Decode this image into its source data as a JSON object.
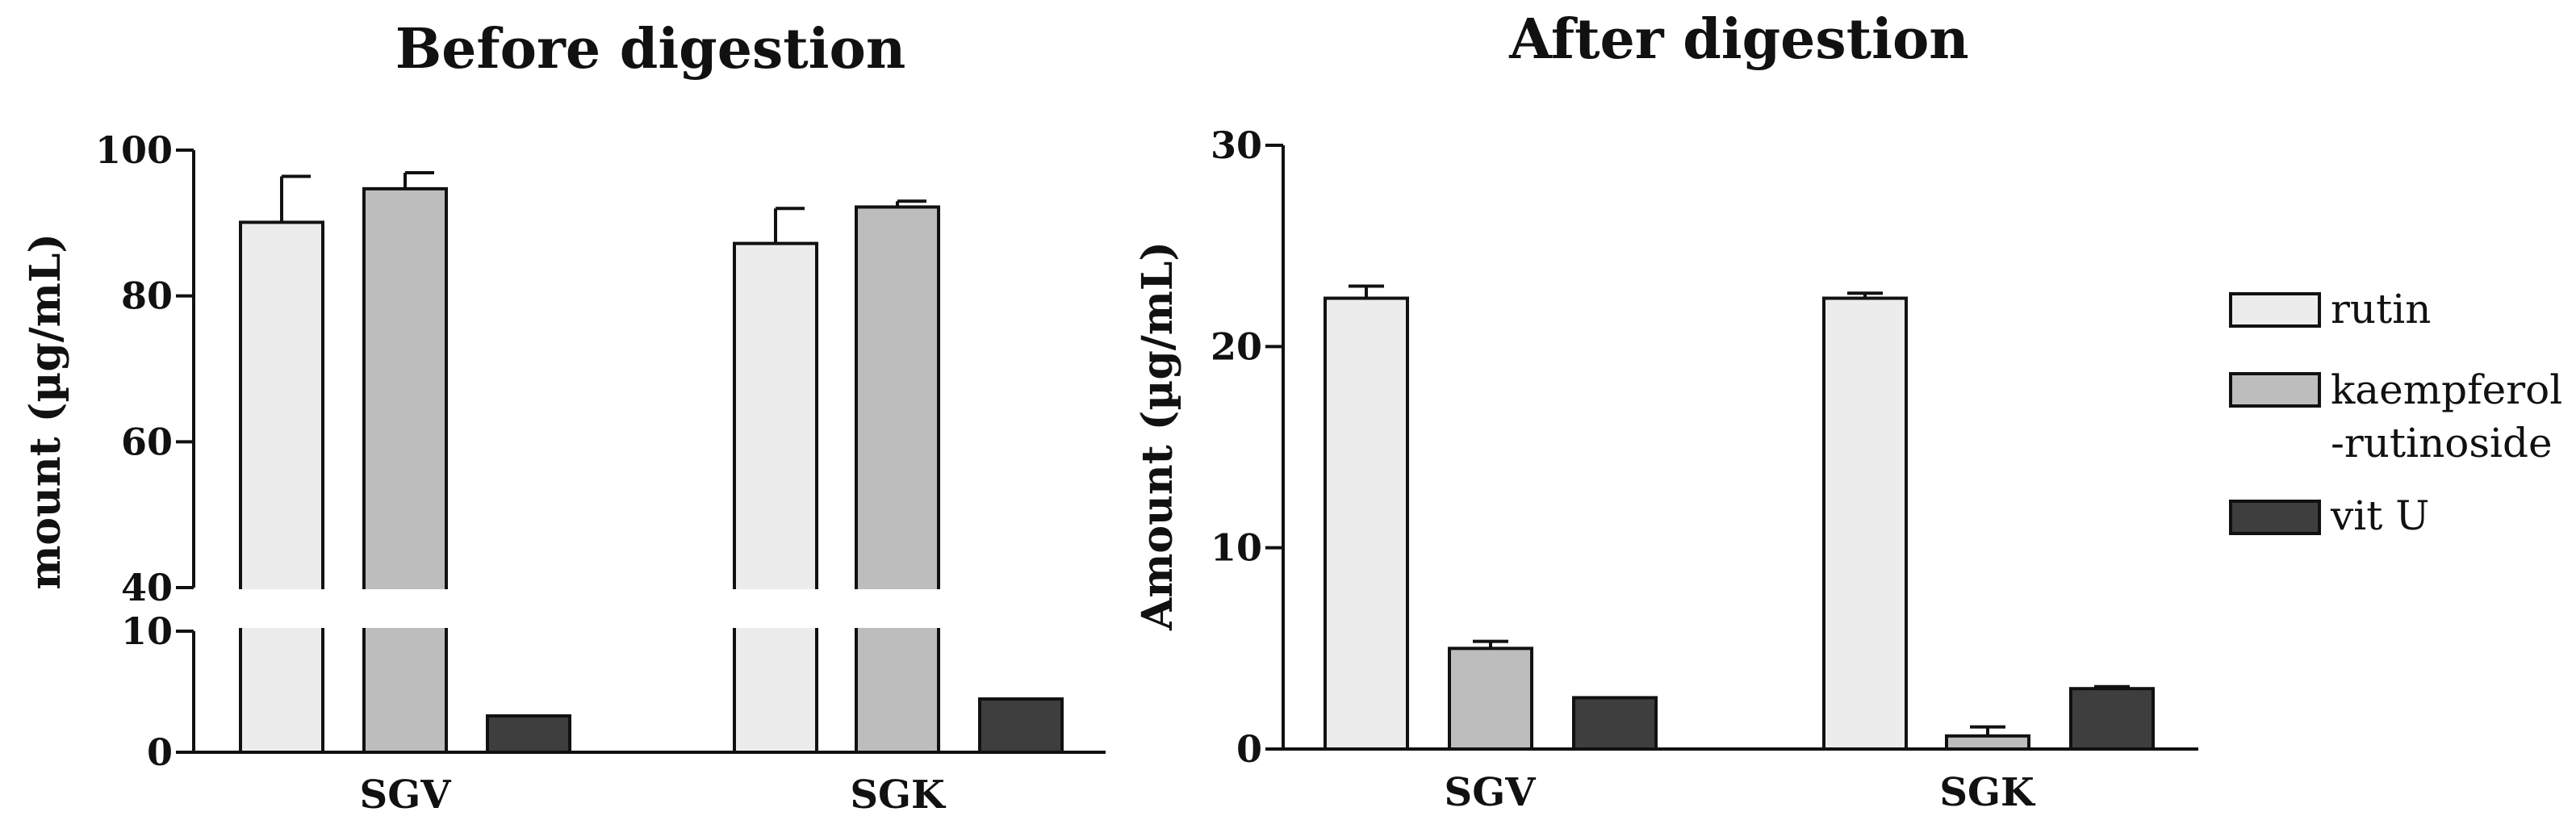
{
  "colors": {
    "rutin": "#ececec",
    "kaempferol": "#bdbdbd",
    "vitU": "#3e3e3e",
    "axis": "#111111"
  },
  "legend": {
    "items": [
      {
        "key": "rutin",
        "lines": [
          "rutin"
        ]
      },
      {
        "key": "kaempferol",
        "lines": [
          "kaempferol",
          "-rutinoside"
        ]
      },
      {
        "key": "vitU",
        "lines": [
          "vit U"
        ]
      }
    ]
  },
  "chart_data": [
    {
      "type": "bar",
      "title": "Before digestion",
      "ylabel": "Amount (µg/mL)",
      "xlabel": "",
      "categories": [
        "SGV",
        "SGK"
      ],
      "axis_break": {
        "lower": [
          0,
          10
        ],
        "upper": [
          40,
          100
        ]
      },
      "yticks": [
        0,
        10,
        40,
        60,
        80,
        100
      ],
      "series": [
        {
          "name": "rutin",
          "values": [
            90.1,
            87.2
          ],
          "errors": [
            6.3,
            4.8
          ]
        },
        {
          "name": "kaempferol-rutinoside",
          "values": [
            94.7,
            92.2
          ],
          "errors": [
            2.2,
            0.8
          ]
        },
        {
          "name": "vit U",
          "values": [
            3.0,
            4.4
          ],
          "errors": [
            0,
            0
          ]
        }
      ]
    },
    {
      "type": "bar",
      "title": "After digestion",
      "ylabel": "Amount (µg/mL)",
      "xlabel": "",
      "categories": [
        "SGV",
        "SGK"
      ],
      "ylim": [
        0,
        30
      ],
      "yticks": [
        0,
        10,
        20,
        30
      ],
      "series": [
        {
          "name": "rutin",
          "values": [
            22.4,
            22.4
          ],
          "errors": [
            0.6,
            0.25
          ]
        },
        {
          "name": "kaempferol-rutinoside",
          "values": [
            5.0,
            0.65
          ],
          "errors": [
            0.35,
            0.45
          ]
        },
        {
          "name": "vit U",
          "values": [
            2.55,
            3.0
          ],
          "errors": [
            0,
            0.1
          ]
        }
      ]
    }
  ]
}
